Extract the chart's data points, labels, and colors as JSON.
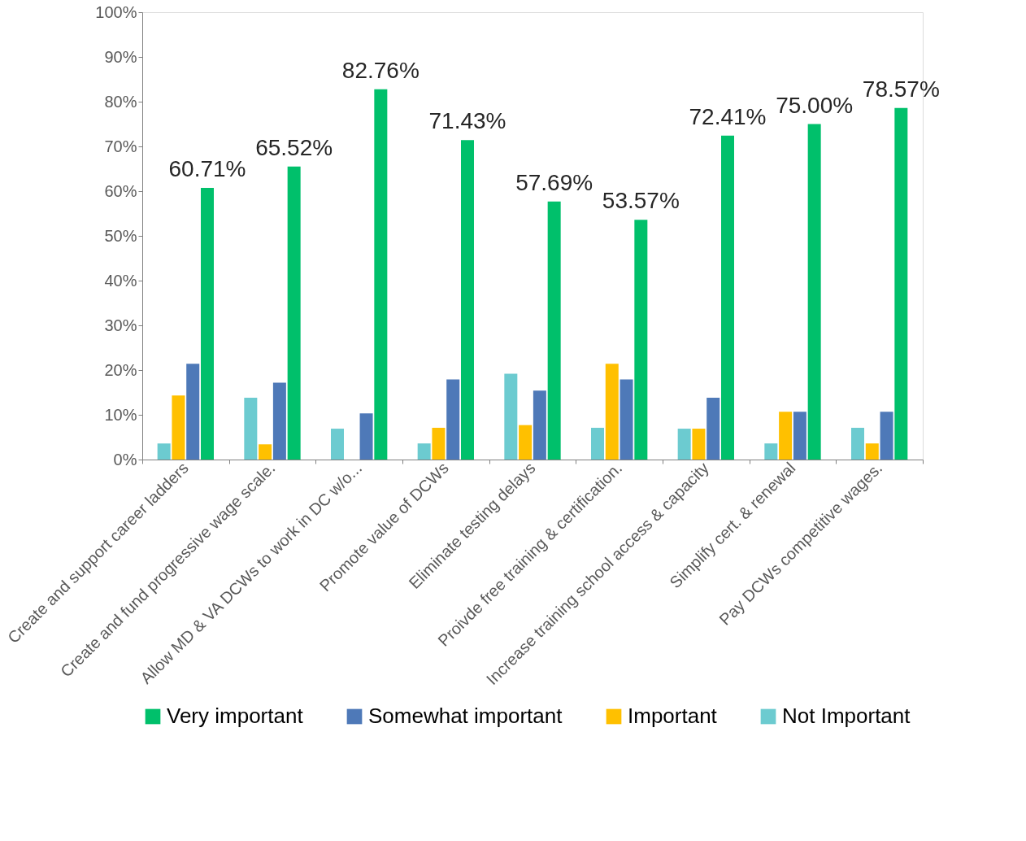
{
  "chart_data": {
    "type": "bar",
    "categories": [
      "Create and support career ladders",
      "Create and fund progressive wage scale.",
      "Allow MD & VA DCWs to work in DC w/o...",
      "Promote value of DCWs",
      "Eliminate testing delays",
      "Proivde free training & certification.",
      "Increase training school  access & capacity",
      "Simplify cert. & renewal",
      "Pay DCWs competitive wages."
    ],
    "series": [
      {
        "name": "Not Important",
        "color": "#6ccbd0",
        "values": [
          3.6,
          13.8,
          6.9,
          3.6,
          19.2,
          7.1,
          6.9,
          3.6,
          7.1
        ]
      },
      {
        "name": "Important",
        "color": "#ffc000",
        "values": [
          14.3,
          3.4,
          0,
          7.1,
          7.7,
          21.4,
          6.9,
          10.7,
          3.6
        ]
      },
      {
        "name": "Somewhat important",
        "color": "#4e79b8",
        "values": [
          21.4,
          17.2,
          10.3,
          17.9,
          15.4,
          17.9,
          13.8,
          10.7,
          10.7
        ]
      },
      {
        "name": "Very important",
        "color": "#00c06b",
        "values": [
          60.71,
          65.52,
          82.76,
          71.43,
          57.69,
          53.57,
          72.41,
          75.0,
          78.57
        ],
        "value_labels": [
          "60.71%",
          "65.52%",
          "82.76%",
          "71.43%",
          "57.69%",
          "53.57%",
          "72.41%",
          "75.00%",
          "78.57%"
        ]
      }
    ],
    "ylim": [
      0,
      100
    ],
    "yticks": [
      {
        "value": 0,
        "label": "0%"
      },
      {
        "value": 10,
        "label": "10%"
      },
      {
        "value": 20,
        "label": "20%"
      },
      {
        "value": 30,
        "label": "30%"
      },
      {
        "value": 40,
        "label": "40%"
      },
      {
        "value": 50,
        "label": "50%"
      },
      {
        "value": 60,
        "label": "60%"
      },
      {
        "value": 70,
        "label": "70%"
      },
      {
        "value": 80,
        "label": "80%"
      },
      {
        "value": 90,
        "label": "90%"
      },
      {
        "value": 100,
        "label": "100%"
      }
    ],
    "grid": false,
    "legend": "bottom"
  }
}
